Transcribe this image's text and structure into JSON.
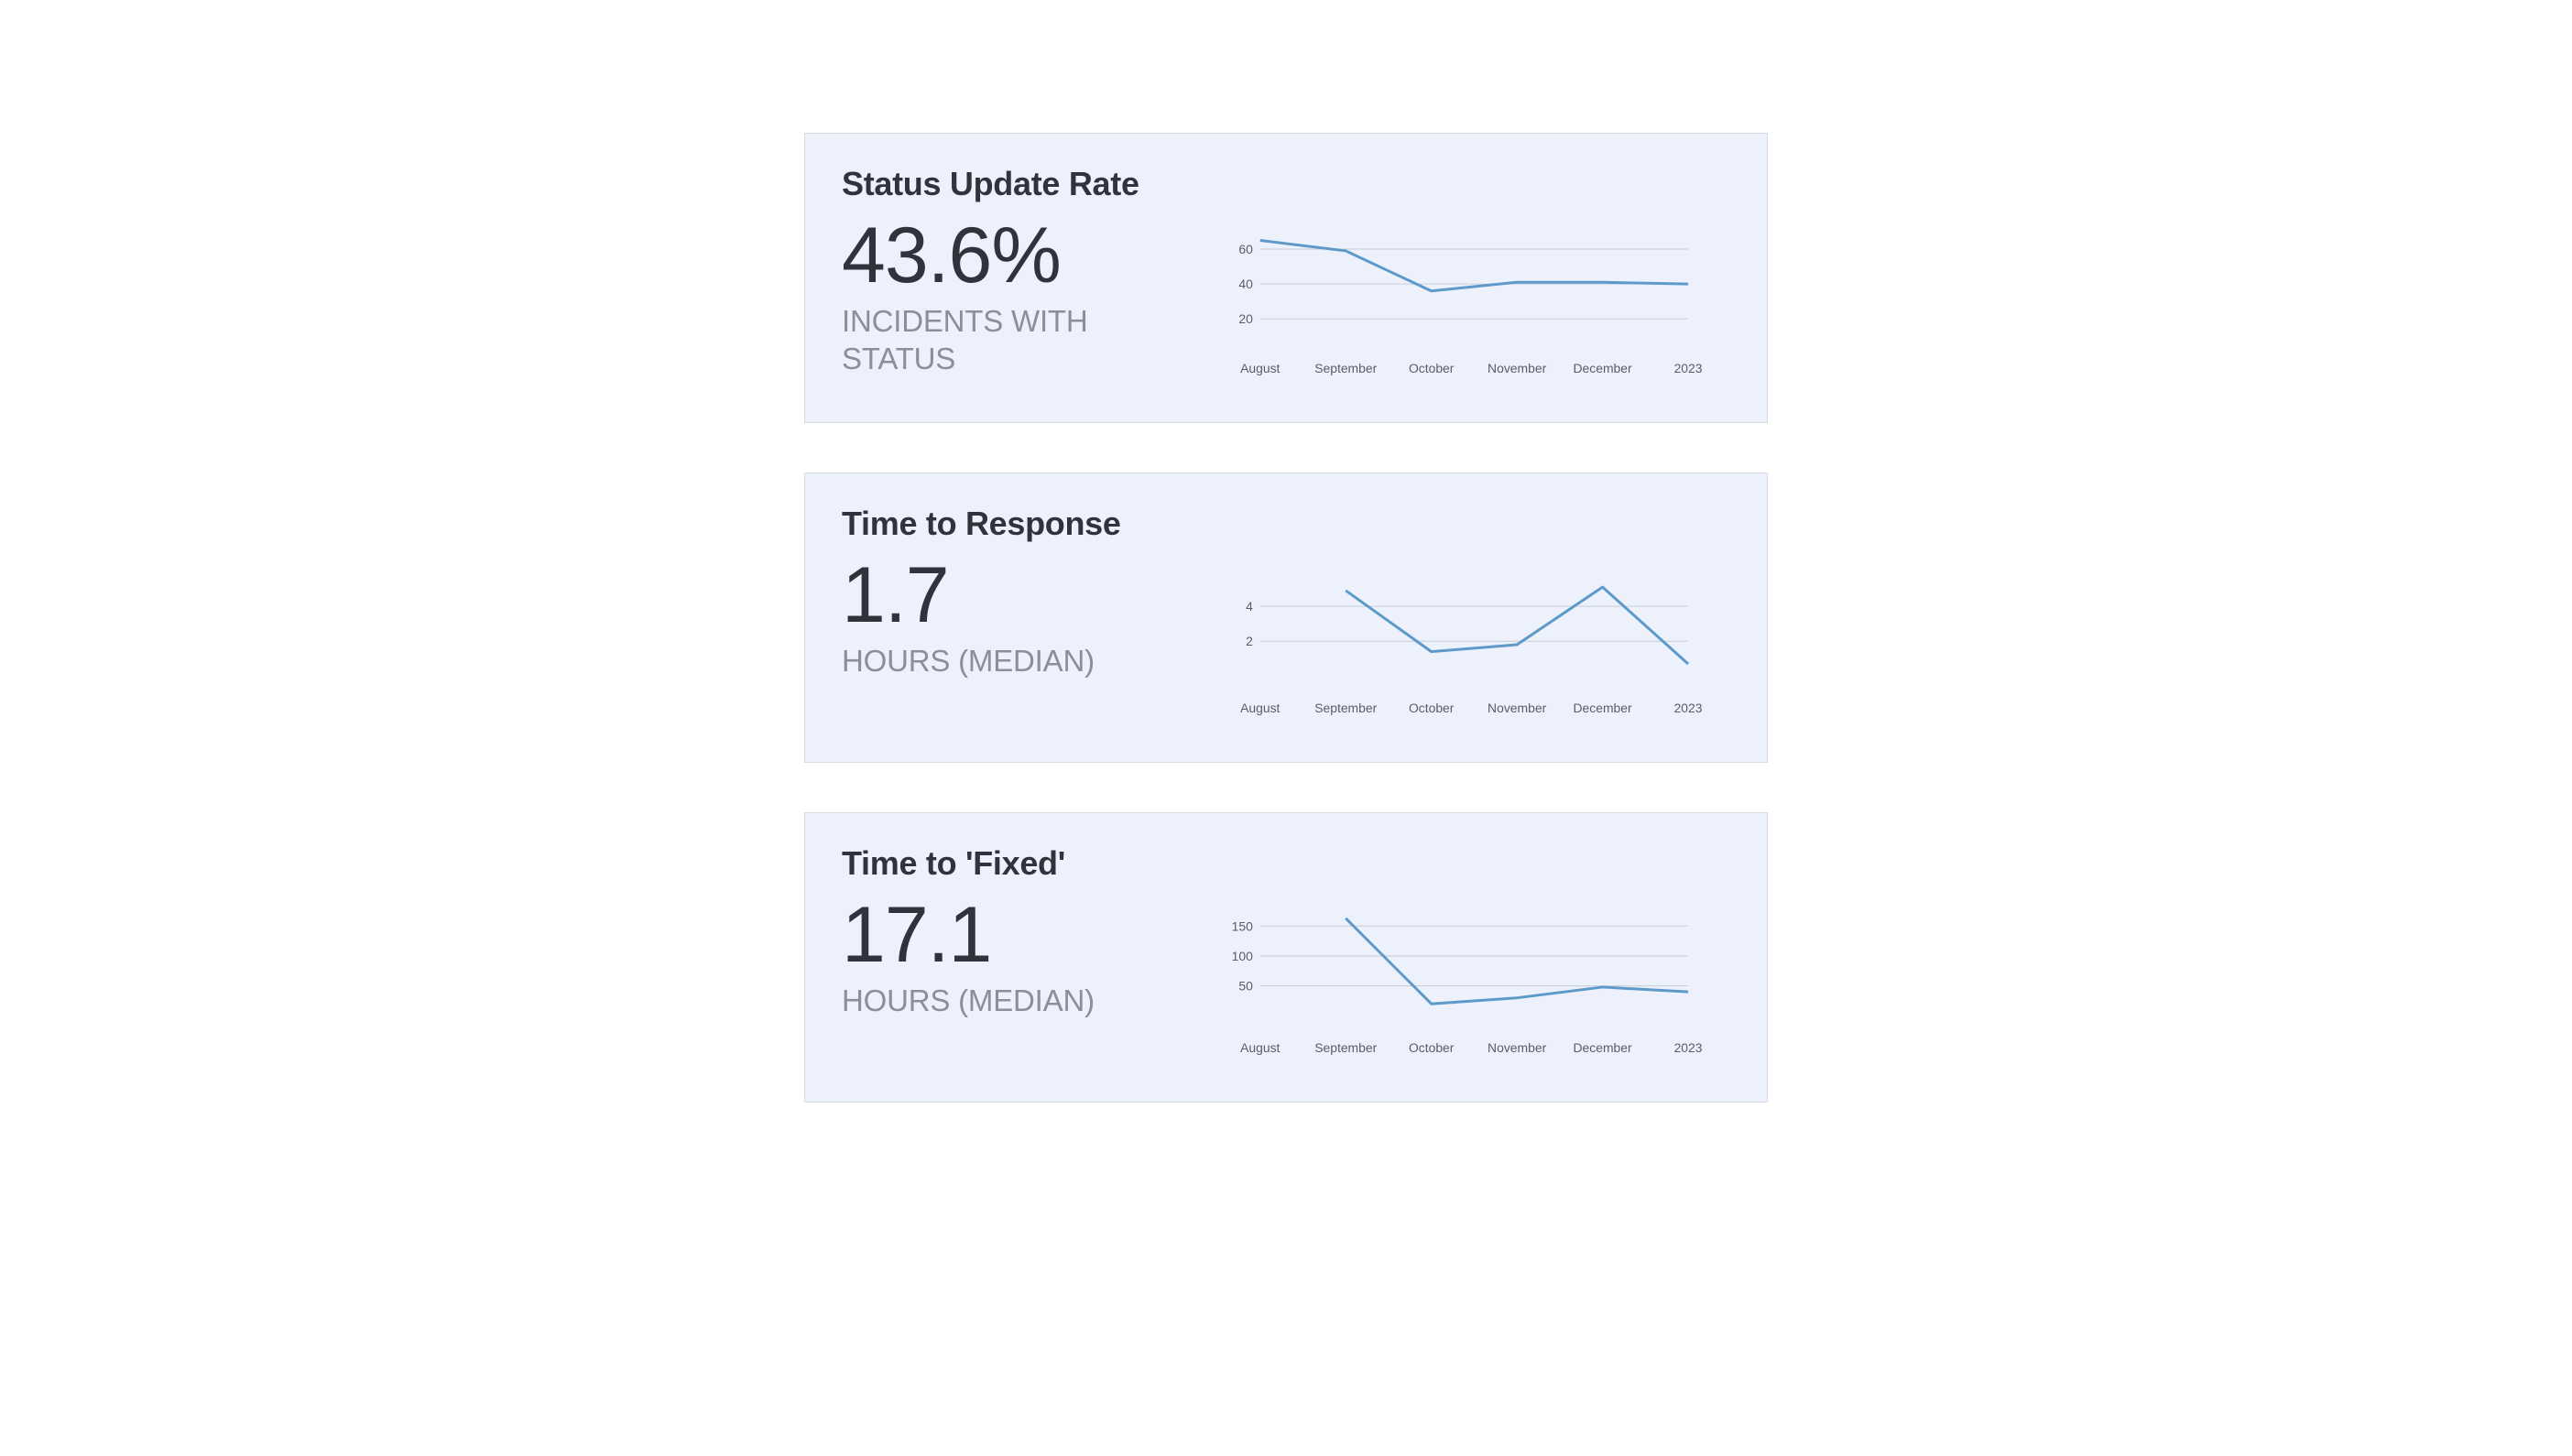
{
  "cards": [
    {
      "id": "status-update-rate",
      "title": "Status Update Rate",
      "metric_value": "43.6%",
      "metric_label": "INCIDENTS WITH STATUS",
      "chart": {
        "type": "line",
        "line_color": "#5d9ac9",
        "grid_color": "#c8ccd4",
        "background_color": "#edf1fb",
        "card_border_color": "#d5dae5",
        "x_labels": [
          "August",
          "September",
          "October",
          "November",
          "December",
          "2023"
        ],
        "y_ticks": [
          20,
          40,
          60
        ],
        "y_min": 10,
        "y_max": 70,
        "values": [
          65,
          59,
          36,
          41,
          41,
          40
        ],
        "line_width": 3,
        "tick_fontsize": 14,
        "tick_color": "#595d65"
      }
    },
    {
      "id": "time-to-response",
      "title": "Time to Response",
      "metric_value": "1.7",
      "metric_label": "HOURS (MEDIAN)",
      "chart": {
        "type": "line",
        "line_color": "#5d9ac9",
        "grid_color": "#c8ccd4",
        "background_color": "#edf1fb",
        "card_border_color": "#d5dae5",
        "x_labels": [
          "August",
          "September",
          "October",
          "November",
          "December",
          "2023"
        ],
        "y_ticks": [
          2,
          4
        ],
        "y_min": 0,
        "y_max": 6,
        "values": [
          4.9,
          1.4,
          1.8,
          5.1,
          0.7
        ],
        "x_offset_start": 1,
        "line_width": 3,
        "tick_fontsize": 14,
        "tick_color": "#595d65"
      }
    },
    {
      "id": "time-to-fixed",
      "title": "Time to 'Fixed'",
      "metric_value": "17.1",
      "metric_label": "HOURS (MEDIAN)",
      "chart": {
        "type": "line",
        "line_color": "#5d9ac9",
        "grid_color": "#c8ccd4",
        "background_color": "#edf1fb",
        "card_border_color": "#d5dae5",
        "x_labels": [
          "August",
          "September",
          "October",
          "November",
          "December",
          "2023"
        ],
        "y_ticks": [
          50,
          100,
          150
        ],
        "y_min": 0,
        "y_max": 175,
        "values": [
          163,
          20,
          30,
          48,
          40
        ],
        "x_offset_start": 1,
        "line_width": 3,
        "tick_fontsize": 14,
        "tick_color": "#595d65"
      }
    }
  ]
}
